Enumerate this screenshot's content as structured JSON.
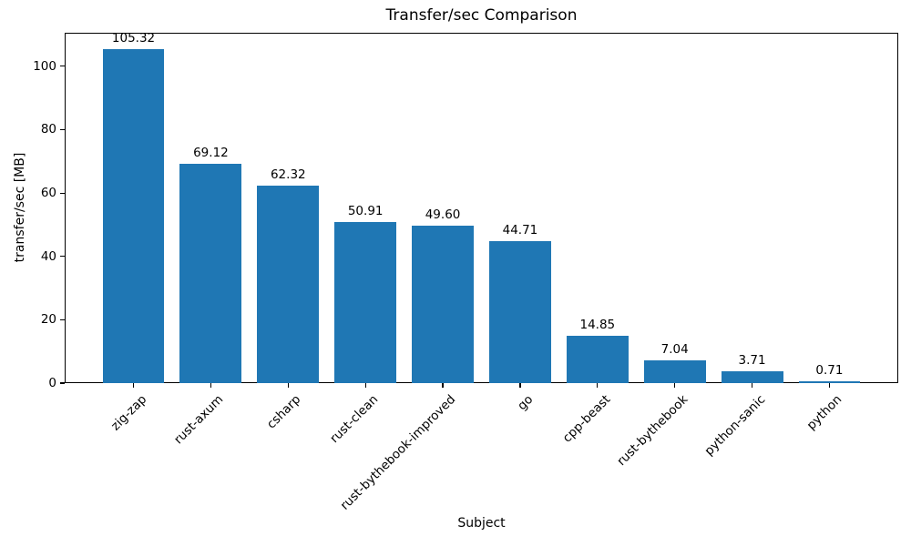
{
  "chart_data": {
    "type": "bar",
    "title": "Transfer/sec Comparison",
    "xlabel": "Subject",
    "ylabel": "transfer/sec [MB]",
    "categories": [
      "zig-zap",
      "rust-axum",
      "csharp",
      "rust-clean",
      "rust-bythebook-improved",
      "go",
      "cpp-beast",
      "rust-bythebook",
      "python-sanic",
      "python"
    ],
    "values": [
      105.32,
      69.12,
      62.32,
      50.91,
      49.6,
      44.71,
      14.85,
      7.04,
      3.71,
      0.71
    ],
    "value_labels": [
      "105.32",
      "69.12",
      "62.32",
      "50.91",
      "49.60",
      "44.71",
      "14.85",
      "7.04",
      "3.71",
      "0.71"
    ],
    "yticks": [
      0,
      20,
      40,
      60,
      80,
      100
    ],
    "ylim": [
      0,
      110.586
    ],
    "bar_color": "#1f77b4",
    "text_color": "#000000",
    "grid": false,
    "legend": "none"
  }
}
